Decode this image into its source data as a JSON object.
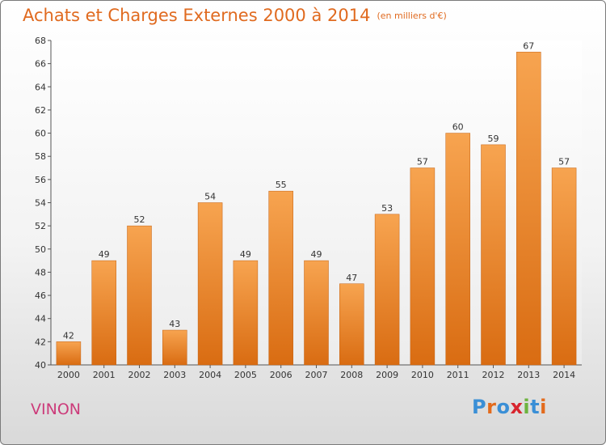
{
  "header": {
    "title": "Achats et Charges Externes 2000 à 2014",
    "subtitle": "(en milliers d'€)"
  },
  "footer": {
    "commune": "VINON",
    "logo": "Proxiti",
    "logo_colors": [
      "#3a8fd6",
      "#e36b1d",
      "#3a8fd6",
      "#d8252e",
      "#6db33f",
      "#3a8fd6",
      "#e36b1d"
    ]
  },
  "chart_data": {
    "type": "bar",
    "title": "Achats et Charges Externes 2000 à 2014",
    "subtitle": "(en milliers d'€)",
    "categories": [
      "2000",
      "2001",
      "2002",
      "2003",
      "2004",
      "2005",
      "2006",
      "2007",
      "2008",
      "2009",
      "2010",
      "2011",
      "2012",
      "2013",
      "2014"
    ],
    "values": [
      42,
      49,
      52,
      43,
      54,
      49,
      55,
      49,
      47,
      53,
      57,
      60,
      59,
      67,
      57
    ],
    "ylim": [
      40,
      68
    ],
    "yticks": [
      40,
      42,
      44,
      46,
      48,
      50,
      52,
      54,
      56,
      58,
      60,
      62,
      64,
      66,
      68
    ],
    "grid": false,
    "bar_color": "#f08a2a"
  }
}
